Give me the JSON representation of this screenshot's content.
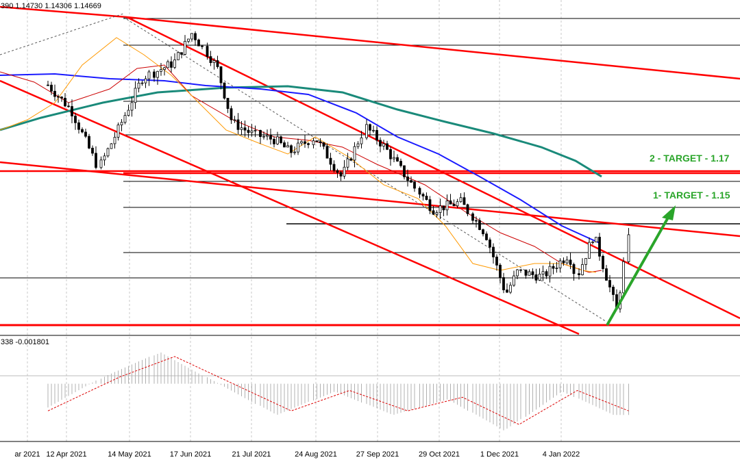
{
  "chart_data": {
    "type": "candlestick",
    "symbol_header": "390 1.14730 1.14306 1.14669",
    "x_tick_labels": [
      "ar 2021",
      "12 Apr 2021",
      "14 May 2021",
      "17 Jun 2021",
      "21 Jul 2021",
      "24 Aug 2021",
      "27 Sep 2021",
      "29 Oct 2021",
      "1 Dec 2021",
      "4 Jan 2022"
    ],
    "annotations": [
      {
        "name": "target-2",
        "text": "2 - TARGET - 1.17"
      },
      {
        "name": "target-1",
        "text": "1- TARGET - 1.15"
      }
    ],
    "price_series": [
      {
        "x": "2021-03-01",
        "y": 1.205
      },
      {
        "x": "2021-03-15",
        "y": 1.195
      },
      {
        "x": "2021-03-31",
        "y": 1.172
      },
      {
        "x": "2021-04-12",
        "y": 1.188
      },
      {
        "x": "2021-04-26",
        "y": 1.208
      },
      {
        "x": "2021-05-14",
        "y": 1.214
      },
      {
        "x": "2021-05-25",
        "y": 1.226
      },
      {
        "x": "2021-06-08",
        "y": 1.212
      },
      {
        "x": "2021-06-17",
        "y": 1.19
      },
      {
        "x": "2021-06-30",
        "y": 1.185
      },
      {
        "x": "2021-07-12",
        "y": 1.183
      },
      {
        "x": "2021-07-21",
        "y": 1.178
      },
      {
        "x": "2021-08-04",
        "y": 1.184
      },
      {
        "x": "2021-08-20",
        "y": 1.168
      },
      {
        "x": "2021-08-24",
        "y": 1.174
      },
      {
        "x": "2021-09-03",
        "y": 1.188
      },
      {
        "x": "2021-09-14",
        "y": 1.18
      },
      {
        "x": "2021-09-27",
        "y": 1.168
      },
      {
        "x": "2021-10-12",
        "y": 1.155
      },
      {
        "x": "2021-10-29",
        "y": 1.158
      },
      {
        "x": "2021-11-12",
        "y": 1.145
      },
      {
        "x": "2021-11-24",
        "y": 1.121
      },
      {
        "x": "2021-12-01",
        "y": 1.13
      },
      {
        "x": "2021-12-15",
        "y": 1.128
      },
      {
        "x": "2021-12-31",
        "y": 1.137
      },
      {
        "x": "2022-01-04",
        "y": 1.128
      },
      {
        "x": "2022-01-14",
        "y": 1.145
      },
      {
        "x": "2022-01-28",
        "y": 1.114
      },
      {
        "x": "2022-02-03",
        "y": 1.143
      }
    ],
    "oscillator_header": "338 -0.001801",
    "oscillator_signal": [
      {
        "x": "2021-03-01",
        "y": -0.002
      },
      {
        "x": "2021-04-12",
        "y": 0.0005
      },
      {
        "x": "2021-05-14",
        "y": 0.002
      },
      {
        "x": "2021-06-17",
        "y": 0.0
      },
      {
        "x": "2021-07-21",
        "y": -0.002
      },
      {
        "x": "2021-08-24",
        "y": -0.0005
      },
      {
        "x": "2021-09-27",
        "y": -0.002
      },
      {
        "x": "2021-10-29",
        "y": -0.001
      },
      {
        "x": "2021-12-01",
        "y": -0.003
      },
      {
        "x": "2022-01-04",
        "y": -0.0005
      },
      {
        "x": "2022-02-03",
        "y": -0.002
      }
    ],
    "colors": {
      "trendlines": "#ff0000",
      "ma_long": "#1a8a7a",
      "ma_mid": "#1a1aff",
      "ma_short_red": "#cc0000",
      "ma_short_orange": "#ff9900",
      "target_arrow": "#2aa52a",
      "grid": "#c8c8c8",
      "candles": "#000000"
    }
  }
}
